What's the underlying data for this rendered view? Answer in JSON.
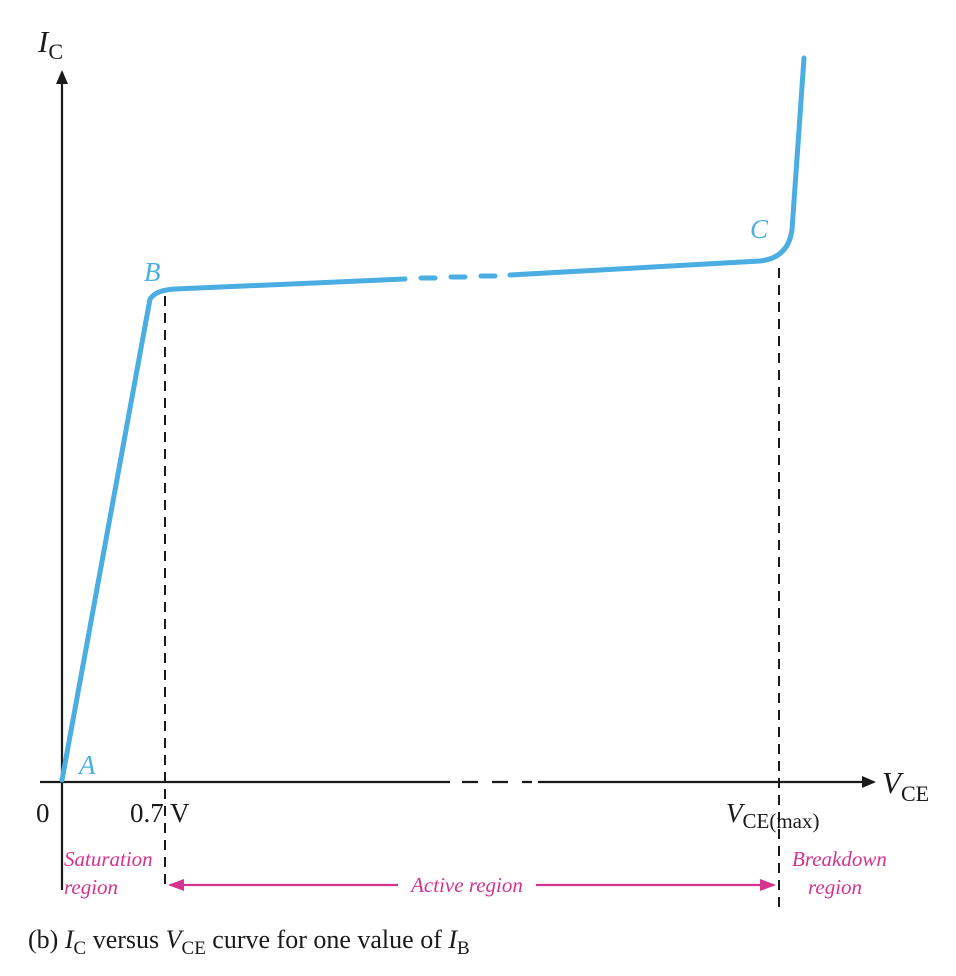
{
  "axes": {
    "y_label": {
      "main": "I",
      "sub": "C"
    },
    "x_label": {
      "main": "V",
      "sub": "CE"
    }
  },
  "ticks": {
    "origin": "0",
    "saturation_voltage": "0.7 V",
    "vce_max": {
      "main": "V",
      "sub": "CE(max)"
    }
  },
  "points": {
    "a": "A",
    "b": "B",
    "c": "C"
  },
  "regions": {
    "saturation": [
      "Saturation",
      "region"
    ],
    "active": "Active region",
    "breakdown": [
      "Breakdown",
      "region"
    ]
  },
  "caption": {
    "prefix": "(b) ",
    "ic_main": "I",
    "ic_sub": "C",
    "versus": " versus ",
    "vce_main": "V",
    "vce_sub": "CE",
    "rest": " curve for one value of ",
    "ib_main": "I",
    "ib_sub": "B"
  },
  "colors": {
    "curve": "#4aaee3",
    "region_labels": "#d6338f",
    "axes": "#1a1a1a"
  }
}
